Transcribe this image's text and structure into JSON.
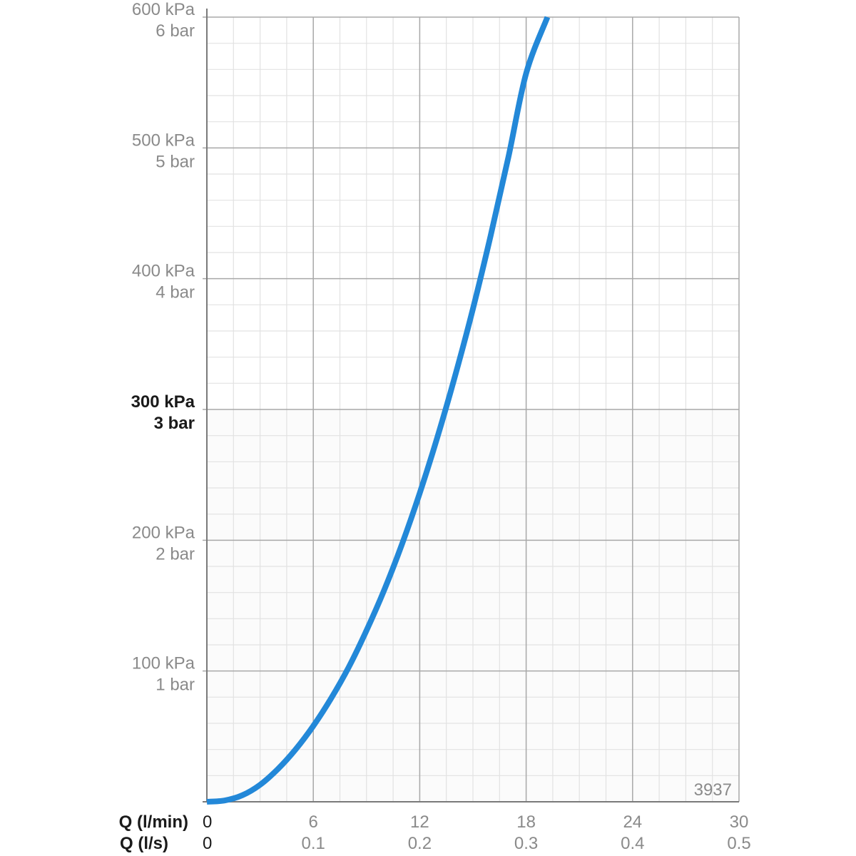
{
  "chart_data": {
    "type": "line",
    "series": [
      {
        "color": "#2388d8",
        "points": [
          {
            "x": 0,
            "y": 0
          },
          {
            "x": 1,
            "y": 1
          },
          {
            "x": 2,
            "y": 5
          },
          {
            "x": 3,
            "y": 13
          },
          {
            "x": 4,
            "y": 25
          },
          {
            "x": 5,
            "y": 40
          },
          {
            "x": 6,
            "y": 58
          },
          {
            "x": 7,
            "y": 79
          },
          {
            "x": 8,
            "y": 103
          },
          {
            "x": 9,
            "y": 131
          },
          {
            "x": 10,
            "y": 162
          },
          {
            "x": 11,
            "y": 197
          },
          {
            "x": 12,
            "y": 236
          },
          {
            "x": 13,
            "y": 279
          },
          {
            "x": 14,
            "y": 326
          },
          {
            "x": 15,
            "y": 377
          },
          {
            "x": 16,
            "y": 433
          },
          {
            "x": 17,
            "y": 493
          },
          {
            "x": 18,
            "y": 557
          },
          {
            "x": 19.2,
            "y": 600
          }
        ]
      }
    ],
    "x_axis": {
      "label": "Q (l/min)",
      "secondary_label": "Q (l/s)",
      "range": [
        0,
        30
      ],
      "ticks": [
        0,
        6,
        12,
        18,
        24,
        30
      ],
      "tick_labels": [
        "0",
        "6",
        "12",
        "18",
        "24",
        "30"
      ],
      "secondary_tick_labels": [
        "0",
        "0.1",
        "0.2",
        "0.3",
        "0.4",
        "0.5"
      ]
    },
    "y_axis": {
      "range": [
        0,
        600
      ],
      "ticks": [
        {
          "value": 100,
          "kpa": "100 kPa",
          "bar": "1 bar",
          "bold": false
        },
        {
          "value": 200,
          "kpa": "200 kPa",
          "bar": "2 bar",
          "bold": false
        },
        {
          "value": 300,
          "kpa": "300 kPa",
          "bar": "3 bar",
          "bold": true
        },
        {
          "value": 400,
          "kpa": "400 kPa",
          "bar": "4 bar",
          "bold": false
        },
        {
          "value": 500,
          "kpa": "500 kPa",
          "bar": "5 bar",
          "bold": false
        },
        {
          "value": 600,
          "kpa": "600 kPa",
          "bar": "6 bar",
          "bold": false
        }
      ]
    },
    "grid": true,
    "colors": {
      "curve": "#2388d8",
      "major_grid": "#a8a8a8",
      "minor_grid": "#e2e2e2",
      "muted_text": "#8a8a8a",
      "dark_text": "#1a1a1a"
    },
    "code": "3937"
  }
}
